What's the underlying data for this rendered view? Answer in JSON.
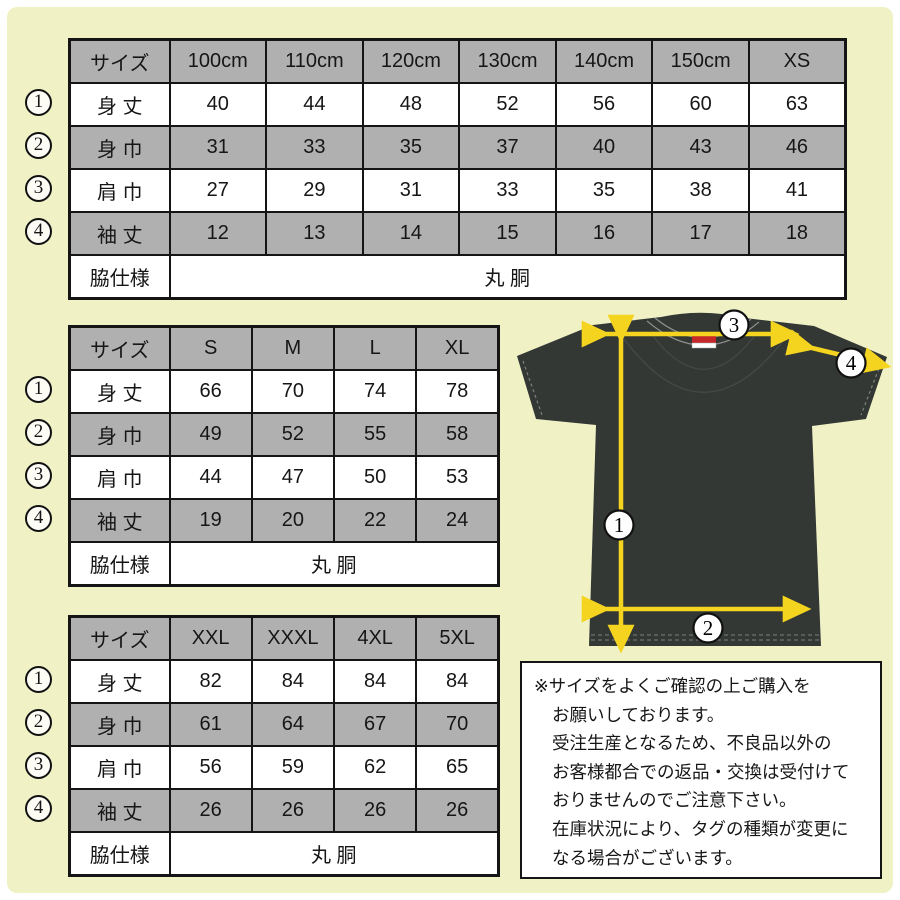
{
  "colors": {
    "background": "#f0f2c6",
    "frame": "#ffffff",
    "table_gray": "#b0b0b0",
    "border_black": "#151515",
    "shirt": "#343835",
    "arrow_yellow": "#f5d41f",
    "neck_label_red": "#c62a28"
  },
  "tables": [
    {
      "header": [
        "サイズ",
        "100cm",
        "110cm",
        "120cm",
        "130cm",
        "140cm",
        "150cm",
        "XS"
      ],
      "rows": [
        {
          "marker": "1",
          "label": "身 丈",
          "values": [
            "40",
            "44",
            "48",
            "52",
            "56",
            "60",
            "63"
          ]
        },
        {
          "marker": "2",
          "label": "身 巾",
          "values": [
            "31",
            "33",
            "35",
            "37",
            "40",
            "43",
            "46"
          ]
        },
        {
          "marker": "3",
          "label": "肩 巾",
          "values": [
            "27",
            "29",
            "31",
            "33",
            "35",
            "38",
            "41"
          ]
        },
        {
          "marker": "4",
          "label": "袖 丈",
          "values": [
            "12",
            "13",
            "14",
            "15",
            "16",
            "17",
            "18"
          ]
        }
      ],
      "footer_label": "脇仕様",
      "footer_value": "丸 胴"
    },
    {
      "header": [
        "サイズ",
        "S",
        "M",
        "L",
        "XL"
      ],
      "rows": [
        {
          "marker": "1",
          "label": "身 丈",
          "values": [
            "66",
            "70",
            "74",
            "78"
          ]
        },
        {
          "marker": "2",
          "label": "身 巾",
          "values": [
            "49",
            "52",
            "55",
            "58"
          ]
        },
        {
          "marker": "3",
          "label": "肩 巾",
          "values": [
            "44",
            "47",
            "50",
            "53"
          ]
        },
        {
          "marker": "4",
          "label": "袖 丈",
          "values": [
            "19",
            "20",
            "22",
            "24"
          ]
        }
      ],
      "footer_label": "脇仕様",
      "footer_value": "丸 胴"
    },
    {
      "header": [
        "サイズ",
        "XXL",
        "XXXL",
        "4XL",
        "5XL"
      ],
      "rows": [
        {
          "marker": "1",
          "label": "身 丈",
          "values": [
            "82",
            "84",
            "84",
            "84"
          ]
        },
        {
          "marker": "2",
          "label": "身 巾",
          "values": [
            "61",
            "64",
            "67",
            "70"
          ]
        },
        {
          "marker": "3",
          "label": "肩 巾",
          "values": [
            "56",
            "59",
            "62",
            "65"
          ]
        },
        {
          "marker": "4",
          "label": "袖 丈",
          "values": [
            "26",
            "26",
            "26",
            "26"
          ]
        }
      ],
      "footer_label": "脇仕様",
      "footer_value": "丸 胴"
    }
  ],
  "diagram": {
    "markers": [
      "1",
      "2",
      "3",
      "4"
    ]
  },
  "note": {
    "lines": [
      "※サイズをよくご確認の上ご購入を",
      "お願いしております。",
      "受注生産となるため、不良品以外の",
      "お客様都合での返品・交換は受付けて",
      "おりませんのでご注意下さい。",
      "在庫状況により、タグの種類が変更に",
      "なる場合がございます。"
    ]
  }
}
